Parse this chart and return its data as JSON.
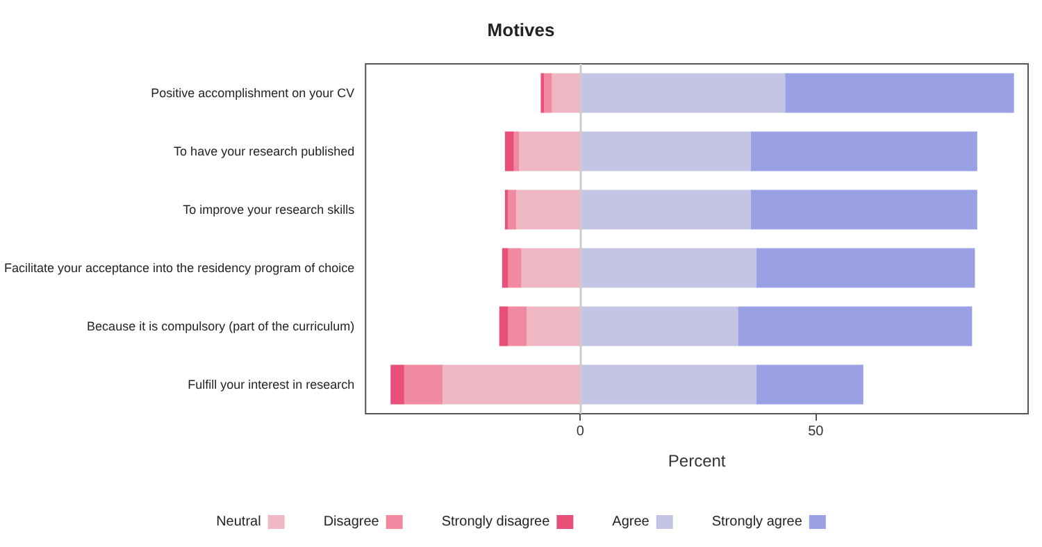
{
  "chart_data": {
    "type": "bar",
    "title": "Motives",
    "xlabel": "Percent",
    "orientation": "horizontal",
    "stacked": true,
    "categories": [
      "Positive accomplishment on your CV",
      "To have your research published",
      "To improve your research skills",
      "Facilitate your acceptance into the residency program of choice",
      "Because it is compulsory (part of the curriculum)",
      "Fulfill your interest in research"
    ],
    "series": [
      {
        "name": "Neutral",
        "color": "#f0b8c4",
        "values": [
          -6.0,
          -13.0,
          -13.6,
          -12.5,
          -11.4,
          -29.2
        ]
      },
      {
        "name": "Disagree",
        "color": "#f08aa0",
        "values": [
          -1.7,
          -1.1,
          -1.8,
          -2.8,
          -3.9,
          -8.2
        ]
      },
      {
        "name": "Strongly disagree",
        "color": "#e8507a",
        "values": [
          -0.7,
          -1.9,
          -0.6,
          -1.3,
          -1.9,
          -2.9
        ]
      },
      {
        "name": "Agree",
        "color": "#c4c4e4",
        "values": [
          43.5,
          36.2,
          36.2,
          37.4,
          33.5,
          37.4
        ]
      },
      {
        "name": "Strongly agree",
        "color": "#99a0e4",
        "values": [
          48.6,
          48.1,
          48.1,
          46.4,
          49.7,
          22.7
        ]
      }
    ],
    "xlim": [
      -45.6,
      95.1
    ],
    "xticks": [
      0,
      50
    ],
    "ref_lines": [
      {
        "axis": "x",
        "value": 0,
        "color": "#cccccc"
      }
    ],
    "grid": false,
    "legend": "bottom"
  }
}
